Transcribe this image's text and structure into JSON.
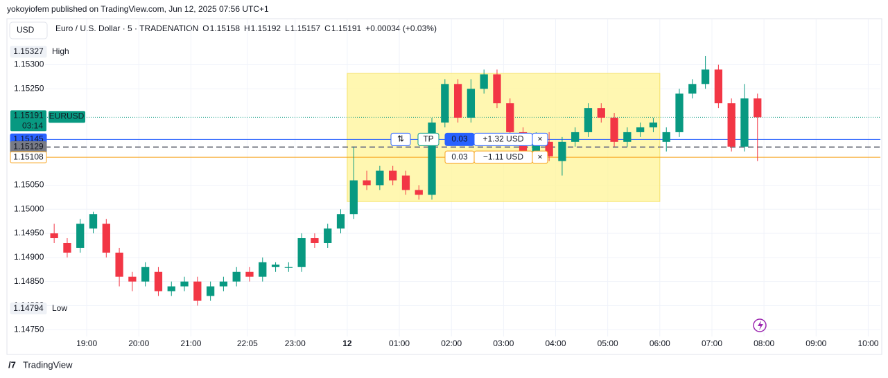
{
  "header": {
    "publisher": "yokoyiofem published on TradingView.com, Jun 12, 2025 07:56 UTC+1",
    "currency": "USD",
    "symbol": "Euro / U.S. Dollar · 5 · TRADENATION",
    "ohlc": [
      {
        "key": "O",
        "value": "1.15158"
      },
      {
        "key": "H",
        "value": "1.15192"
      },
      {
        "key": "L",
        "value": "1.15157"
      },
      {
        "key": "C",
        "value": "1.15191"
      }
    ],
    "change": "+0.00034 (+0.03%)"
  },
  "chart_data": {
    "type": "candlestick",
    "x": [
      "18:15",
      "18:30",
      "18:45",
      "19:00",
      "19:15",
      "19:30",
      "19:45",
      "20:00",
      "20:15",
      "20:30",
      "20:45",
      "21:00",
      "21:15",
      "21:30",
      "21:45",
      "22:00",
      "22:15",
      "22:30",
      "22:45",
      "23:00",
      "23:15",
      "23:30",
      "23:45",
      "00:00",
      "00:15",
      "00:30",
      "00:45",
      "01:00",
      "01:15",
      "01:30",
      "01:45",
      "02:00",
      "02:15",
      "02:30",
      "02:45",
      "03:00",
      "03:15",
      "03:30",
      "03:45",
      "04:00",
      "04:15",
      "04:30",
      "04:45",
      "05:00",
      "05:15",
      "05:30",
      "05:45",
      "06:00",
      "06:15",
      "06:30",
      "06:45",
      "07:00",
      "07:15",
      "07:30",
      "07:45"
    ],
    "open": [
      1.1495,
      1.1493,
      1.1492,
      1.1496,
      1.1497,
      1.1491,
      1.1486,
      1.1485,
      1.1487,
      1.1483,
      1.1484,
      1.1485,
      1.1482,
      1.1484,
      1.1485,
      1.1487,
      1.1486,
      1.1488,
      1.1488,
      1.1488,
      1.1494,
      1.1493,
      1.1496,
      1.1499,
      1.1506,
      1.1505,
      1.1508,
      1.1507,
      1.1504,
      1.1503,
      1.1518,
      1.1526,
      1.1519,
      1.1525,
      1.1528,
      1.1522,
      1.1516,
      1.1512,
      1.1514,
      1.151,
      1.1514,
      1.1516,
      1.1521,
      1.1519,
      1.1514,
      1.1516,
      1.1517,
      1.1514,
      1.1516,
      1.1524,
      1.1526,
      1.1529,
      1.1522,
      1.1513,
      1.1523
    ],
    "high": [
      1.1497,
      1.1494,
      1.1498,
      1.14995,
      1.1498,
      1.1492,
      1.1487,
      1.1489,
      1.1488,
      1.1485,
      1.1486,
      1.1486,
      1.1485,
      1.1486,
      1.1488,
      1.1488,
      1.149,
      1.1489,
      1.1489,
      1.1495,
      1.1495,
      1.1497,
      1.15,
      1.1513,
      1.1508,
      1.1509,
      1.1509,
      1.1508,
      1.1505,
      1.1519,
      1.1527,
      1.1527,
      1.1527,
      1.1529,
      1.1529,
      1.1523,
      1.1517,
      1.1516,
      1.1516,
      1.1515,
      1.1517,
      1.1522,
      1.1522,
      1.152,
      1.1517,
      1.1518,
      1.1519,
      1.1517,
      1.1525,
      1.1527,
      1.15318,
      1.153,
      1.1523,
      1.1526,
      1.1524
    ],
    "low": [
      1.1493,
      1.149,
      1.1491,
      1.1495,
      1.149,
      1.1484,
      1.1483,
      1.1484,
      1.1482,
      1.1482,
      1.1483,
      1.148,
      1.1481,
      1.1483,
      1.1484,
      1.1485,
      1.1485,
      1.1487,
      1.1487,
      1.1487,
      1.1492,
      1.1492,
      1.1495,
      1.1498,
      1.1504,
      1.1504,
      1.1505,
      1.1503,
      1.1502,
      1.1502,
      1.1517,
      1.1518,
      1.1518,
      1.1524,
      1.1521,
      1.1515,
      1.1511,
      1.1511,
      1.151,
      1.1507,
      1.1513,
      1.1515,
      1.1518,
      1.1513,
      1.1513,
      1.1515,
      1.1516,
      1.1512,
      1.1515,
      1.1523,
      1.1525,
      1.1521,
      1.1512,
      1.1512,
      1.151
    ],
    "close": [
      1.1494,
      1.1491,
      1.1497,
      1.1499,
      1.1491,
      1.1486,
      1.1485,
      1.1488,
      1.1483,
      1.1484,
      1.1485,
      1.1481,
      1.1484,
      1.1485,
      1.1487,
      1.1486,
      1.1489,
      1.14885,
      1.1488,
      1.1494,
      1.1493,
      1.1496,
      1.1499,
      1.1506,
      1.1505,
      1.1508,
      1.1506,
      1.1504,
      1.1503,
      1.1518,
      1.1526,
      1.1519,
      1.1525,
      1.1528,
      1.1522,
      1.1516,
      1.1512,
      1.1514,
      1.1511,
      1.1514,
      1.1516,
      1.1521,
      1.1519,
      1.1514,
      1.1516,
      1.1517,
      1.1518,
      1.1516,
      1.1524,
      1.1526,
      1.1529,
      1.1522,
      1.1513,
      1.1523,
      1.15191
    ],
    "up_color": "#089981",
    "down_color": "#f23645",
    "xlim": [
      "18:12",
      "10:14"
    ],
    "xticks": [
      {
        "value": "19:00",
        "label": "19:00"
      },
      {
        "value": "20:00",
        "label": "20:00"
      },
      {
        "value": "21:00",
        "label": "21:00"
      },
      {
        "value": "22:05",
        "label": "22:05"
      },
      {
        "value": "23:00",
        "label": "23:00"
      },
      {
        "value": "00:00",
        "label": "12"
      },
      {
        "value": "01:00",
        "label": "01:00"
      },
      {
        "value": "02:00",
        "label": "02:00"
      },
      {
        "value": "03:00",
        "label": "03:00"
      },
      {
        "value": "04:00",
        "label": "04:00"
      },
      {
        "value": "05:00",
        "label": "05:00"
      },
      {
        "value": "06:00",
        "label": "06:00"
      },
      {
        "value": "07:00",
        "label": "07:00"
      },
      {
        "value": "08:00",
        "label": "08:00"
      },
      {
        "value": "09:00",
        "label": "09:00"
      },
      {
        "value": "10:00",
        "label": "10:00"
      }
    ],
    "ylim": [
      1.14736,
      1.15351
    ],
    "yticks": [
      {
        "value": 1.153,
        "label": "1.15300"
      },
      {
        "value": 1.1525,
        "label": "1.15250"
      },
      {
        "value": 1.1505,
        "label": "1.15050"
      },
      {
        "value": 1.15,
        "label": "1.15000"
      },
      {
        "value": 1.1495,
        "label": "1.14950"
      },
      {
        "value": 1.149,
        "label": "1.14900"
      },
      {
        "value": 1.1485,
        "label": "1.14850"
      },
      {
        "value": 1.148,
        "label": "1.14800"
      },
      {
        "value": 1.1475,
        "label": "1.14750"
      }
    ],
    "grid": true,
    "high_marker": {
      "label": "High",
      "value": 1.15327
    },
    "low_marker": {
      "label": "Low",
      "value": 1.14794
    },
    "levels": [
      {
        "value": 1.15145,
        "color": "#2962ff",
        "style": "solid"
      },
      {
        "value": 1.15129,
        "color": "#787b86",
        "style": "dashed"
      },
      {
        "value": 1.15108,
        "color": "#f7a21b",
        "style": "solid"
      }
    ],
    "last": {
      "symbol": "EURUSD",
      "value": 1.15191,
      "countdown": "03:14",
      "color": "#089981"
    },
    "zone": {
      "x": [
        "00:00",
        "06:00"
      ],
      "y": [
        1.15016,
        1.15282
      ],
      "color": "#fff59d"
    },
    "position": {
      "tp": "TP",
      "tp_qty": "0.03",
      "tp_pnl": "+1.32 USD",
      "sl_qty": "0.03",
      "sl_pnl": "−1.11 USD"
    }
  },
  "footer": {
    "brand": "TradingView"
  }
}
